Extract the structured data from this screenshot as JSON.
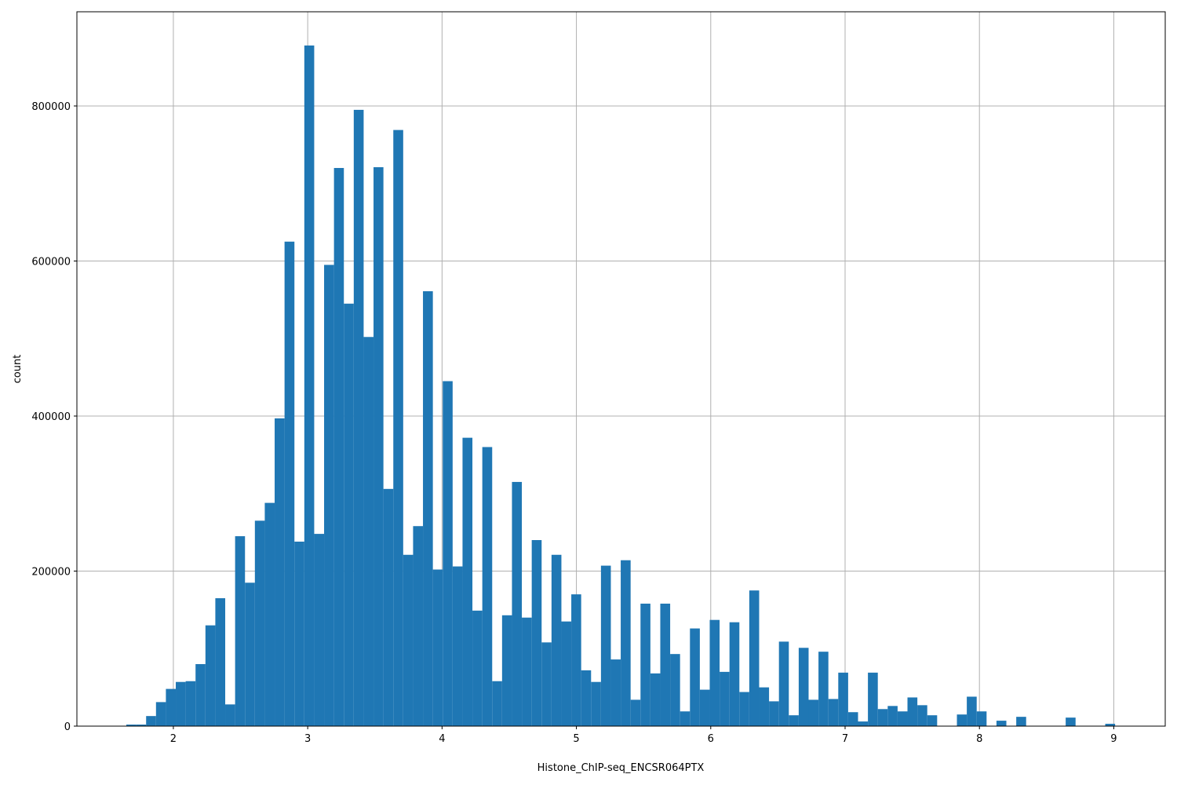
{
  "chart_data": {
    "type": "histogram",
    "xlabel": "Histone_ChIP-seq_ENCSR064PTX",
    "ylabel": "count",
    "color": "#1f77b4",
    "grid": true,
    "bins": [
      1.65,
      1.7236,
      1.7972,
      1.8708,
      1.9444,
      2.018,
      2.0916,
      2.1652,
      2.2388,
      2.3124,
      2.386,
      2.4596,
      2.5332,
      2.6068,
      2.6804,
      2.754,
      2.8276,
      2.9012,
      2.9748,
      3.0484,
      3.122,
      3.1956,
      3.2692,
      3.3428,
      3.4164,
      3.49,
      3.5636,
      3.6372,
      3.7108,
      3.7844,
      3.858,
      3.9316,
      4.0052,
      4.0788,
      4.1524,
      4.226,
      4.2996,
      4.3732,
      4.4468,
      4.5204,
      4.594,
      4.6676,
      4.7412,
      4.8148,
      4.8884,
      4.962,
      5.0356,
      5.1092,
      5.1828,
      5.2564,
      5.33,
      5.4036,
      5.4772,
      5.5508,
      5.6244,
      5.698,
      5.7716,
      5.8452,
      5.9188,
      5.9924,
      6.066,
      6.1396,
      6.2132,
      6.2868,
      6.3604,
      6.434,
      6.5076,
      6.5812,
      6.6548,
      6.7284,
      6.802,
      6.8756,
      6.9492,
      7.0228,
      7.0964,
      7.17,
      7.2436,
      7.3172,
      7.3908,
      7.4644,
      7.538,
      7.6116,
      7.6852,
      7.7588,
      7.8324,
      7.906,
      7.9796,
      8.0532,
      8.1268,
      8.2004,
      8.274,
      8.3476,
      8.4212,
      8.4948,
      8.5684,
      8.642,
      8.7156,
      8.7892,
      8.8628,
      8.9364,
      9.01
    ],
    "values": [
      2000,
      2000,
      13000,
      31000,
      48000,
      57000,
      58000,
      80000,
      130000,
      165000,
      28000,
      245000,
      185000,
      265000,
      288000,
      397000,
      625000,
      238000,
      878000,
      248000,
      595000,
      720000,
      545000,
      795000,
      502000,
      721000,
      306000,
      769000,
      221000,
      258000,
      561000,
      202000,
      445000,
      206000,
      372000,
      149000,
      360000,
      58000,
      143000,
      315000,
      140000,
      240000,
      108000,
      221000,
      135000,
      170000,
      72000,
      57000,
      207000,
      86000,
      214000,
      34000,
      158000,
      68000,
      158000,
      93000,
      19000,
      126000,
      47000,
      137000,
      70000,
      134000,
      44000,
      175000,
      50000,
      32000,
      109000,
      14000,
      101000,
      34000,
      96000,
      35000,
      69000,
      18000,
      6000,
      69000,
      22000,
      26000,
      19000,
      37000,
      27000,
      14000,
      0,
      0,
      15000,
      38000,
      19000,
      0,
      7000,
      0,
      12000,
      0,
      0,
      0,
      0,
      11000,
      0,
      0,
      0,
      3000
    ],
    "xlim": [
      1.282,
      9.383
    ],
    "ylim": [
      0,
      921500
    ],
    "xticks": [
      2,
      3,
      4,
      5,
      6,
      7,
      8,
      9
    ],
    "yticks": [
      0,
      200000,
      400000,
      600000,
      800000
    ]
  }
}
